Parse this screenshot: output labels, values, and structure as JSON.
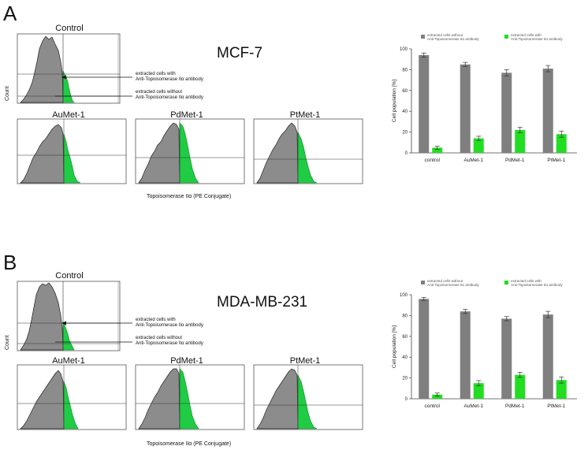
{
  "panels": [
    {
      "letter": "A",
      "cell_line": "MCF-7",
      "histograms": {
        "control_title": "Control",
        "sub_titles": [
          "AuMet-1",
          "PdMet-1",
          "PtMet-1"
        ],
        "count_label": "Count",
        "x_label": "Topoisomerase IIα (PE Conjugate)",
        "annot_with_1": "extracted cells with",
        "annot_with_2": "Anti-Topoisomerase IIα antibody",
        "annot_without_1": "extracted cells without",
        "annot_without_2": "Anti-Topoisomerase IIα antibody"
      }
    },
    {
      "letter": "B",
      "cell_line": "MDA-MB-231",
      "histograms": {
        "control_title": "Control",
        "sub_titles": [
          "AuMet-1",
          "PdMet-1",
          "PtMet-1"
        ],
        "count_label": "Count",
        "x_label": "Topoisomerase IIα (PE Conjugate)",
        "annot_with_1": "extracted cells with",
        "annot_with_2": "Anti-Topoisomerase IIα antibody",
        "annot_without_1": "extracted cells without",
        "annot_without_2": "Anti-Topoisomerase IIα antibody"
      }
    }
  ],
  "colors": {
    "gray": "#7f7f7f",
    "green": "#22dd22",
    "hist_gray": "#8c8c8c",
    "hist_green": "#1fcc44"
  },
  "chart_data": [
    {
      "type": "bar",
      "categories": [
        "control",
        "AuMet-1",
        "PdMet-1",
        "PtMet-1"
      ],
      "series": [
        {
          "name": "extracted cells without Anti-Topoisomerase IIα antibody",
          "values": [
            94,
            85,
            77,
            81
          ],
          "errors": [
            2,
            2,
            3,
            3
          ]
        },
        {
          "name": "extracted cells with Anti-Topoisomerase IIα antibody",
          "values": [
            5,
            14,
            22,
            18
          ],
          "errors": [
            1.5,
            2,
            2.5,
            3
          ]
        }
      ],
      "legend_1a": "extracted cells without",
      "legend_1b": "Anti-Topoisomerase IIα antibody",
      "legend_2a": "extracted cells with",
      "legend_2b": "Anti-Topoisomerase IIα antibody",
      "ylabel": "Cell population [%]",
      "ylim": [
        0,
        100
      ],
      "yticks": [
        "0",
        "20",
        "40",
        "60",
        "80",
        "100"
      ],
      "legend": "top"
    },
    {
      "type": "bar",
      "categories": [
        "control",
        "AuMet-1",
        "PdMet-1",
        "PtMet-1"
      ],
      "series": [
        {
          "name": "extracted cells without Anti-Topoisomerase IIα antibody",
          "values": [
            96,
            84,
            77,
            81
          ],
          "errors": [
            1.5,
            2,
            2,
            3
          ]
        },
        {
          "name": "extracted cells with Anti-Topoisomerase IIα antibody",
          "values": [
            4,
            15,
            23,
            18
          ],
          "errors": [
            1.5,
            2.5,
            2.5,
            3
          ]
        }
      ],
      "legend_1a": "extracted cells without",
      "legend_1b": "Anti-Topoisomerase IIα antibody",
      "legend_2a": "extracted cells with",
      "legend_2b": "Anti-Topoisomerase IIα antibody",
      "ylabel": "Cell population [%]",
      "ylim": [
        0,
        100
      ],
      "yticks": [
        "0",
        "20",
        "40",
        "60",
        "80",
        "100"
      ],
      "legend": "top"
    }
  ]
}
